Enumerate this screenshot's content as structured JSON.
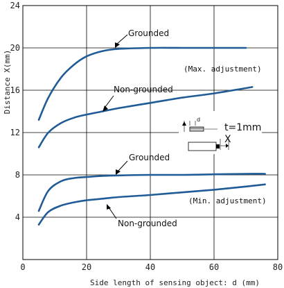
{
  "colors": {
    "series": "#1f5b96",
    "grid": "#000000",
    "text": "#222222"
  },
  "chart_data": {
    "type": "line",
    "title": "",
    "xlabel": "Side length of sensing object: d (mm)",
    "ylabel": "Distance X(mm)",
    "xlim": [
      0,
      80
    ],
    "ylim": [
      0,
      24
    ],
    "xticks": [
      0,
      20,
      40,
      60,
      80
    ],
    "yticks": [
      4,
      8,
      12,
      16,
      20,
      24
    ],
    "grid": true,
    "series": [
      {
        "x": [
          5,
          8,
          12,
          16,
          20,
          25,
          30,
          40,
          50,
          60,
          70
        ],
        "y": [
          13.2,
          15.3,
          17.2,
          18.4,
          19.2,
          19.7,
          19.9,
          20.0,
          20.0,
          20.0,
          20.0
        ]
      },
      {
        "x": [
          5,
          8,
          12,
          16,
          20,
          25,
          30,
          40,
          50,
          60,
          72
        ],
        "y": [
          10.6,
          12.0,
          12.9,
          13.4,
          13.7,
          14.0,
          14.3,
          14.8,
          15.3,
          15.7,
          16.3
        ]
      },
      {
        "x": [
          5,
          8,
          12,
          16,
          20,
          25,
          30,
          40,
          50,
          60,
          70,
          76
        ],
        "y": [
          4.6,
          6.5,
          7.4,
          7.7,
          7.8,
          7.9,
          7.95,
          8.0,
          8.0,
          8.05,
          8.1,
          8.1
        ]
      },
      {
        "x": [
          5,
          8,
          12,
          16,
          20,
          25,
          30,
          40,
          50,
          60,
          70,
          76
        ],
        "y": [
          3.3,
          4.5,
          5.1,
          5.4,
          5.6,
          5.75,
          5.9,
          6.1,
          6.35,
          6.6,
          6.9,
          7.1
        ]
      }
    ],
    "annotations": {
      "grounded_upper": "Grounded",
      "nongrounded_upper": "Non-grounded",
      "grounded_lower": "Grounded",
      "nongrounded_lower": "Non-grounded",
      "max_adjustment": "(Max. adjustment)",
      "min_adjustment": "(Min. adjustment)"
    },
    "inset": {
      "thickness": "t=1mm",
      "distance_symbol": "X",
      "size_symbol": "d"
    }
  }
}
